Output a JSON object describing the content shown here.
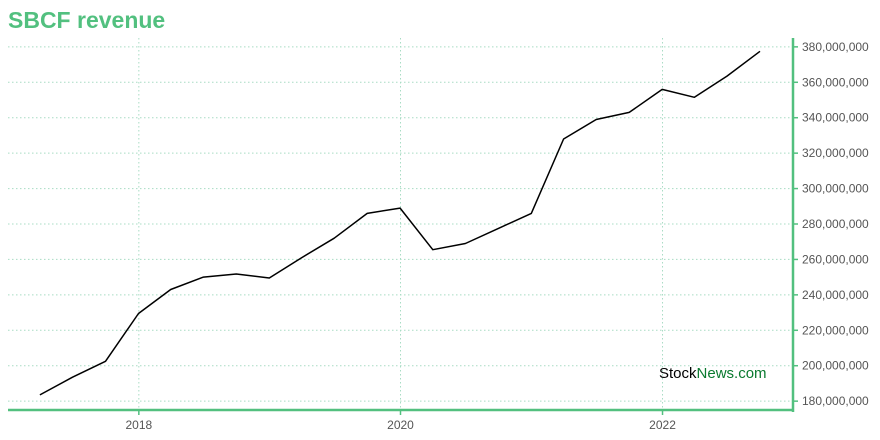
{
  "title": "SBCF revenue",
  "watermark": {
    "part1": "Stock",
    "part2": "News",
    "part3": ".com"
  },
  "colors": {
    "accent": "#52c07f",
    "grid": "#a8dcc4",
    "line": "#000000"
  },
  "chart_data": {
    "type": "line",
    "title": "SBCF revenue",
    "xlabel": "",
    "ylabel": "",
    "x_ticks": [
      "2018",
      "2020",
      "2022"
    ],
    "y_ticks": [
      "180,000,000",
      "200,000,000",
      "220,000,000",
      "240,000,000",
      "260,000,000",
      "280,000,000",
      "300,000,000",
      "320,000,000",
      "340,000,000",
      "360,000,000",
      "380,000,000"
    ],
    "ylim": [
      175000000,
      385000000
    ],
    "xlim": [
      "2017-01-01",
      "2022-12-31"
    ],
    "grid": true,
    "series": [
      {
        "name": "",
        "x": [
          "2017-03-31",
          "2017-06-30",
          "2017-09-30",
          "2017-12-31",
          "2018-03-31",
          "2018-06-30",
          "2018-09-30",
          "2018-12-31",
          "2019-03-31",
          "2019-06-30",
          "2019-09-30",
          "2019-12-31",
          "2020-03-31",
          "2020-06-30",
          "2020-09-30",
          "2020-12-31",
          "2021-03-31",
          "2021-06-30",
          "2021-09-30",
          "2021-12-31",
          "2022-03-31",
          "2022-06-30",
          "2022-09-30"
        ],
        "y": [
          183500000,
          193500000,
          202500000,
          229500000,
          243000000,
          250000000,
          251800000,
          249500000,
          261000000,
          272000000,
          286000000,
          289000000,
          265500000,
          269000000,
          277500000,
          286000000,
          328000000,
          339000000,
          343000000,
          356000000,
          351500000,
          363500000,
          377500000
        ]
      }
    ]
  }
}
